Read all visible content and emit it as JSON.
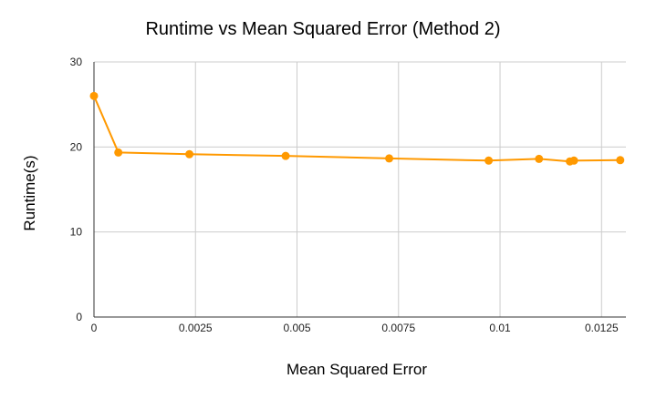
{
  "chart_data": {
    "type": "line",
    "title": "Runtime vs Mean Squared Error (Method 2)",
    "xlabel": "Mean Squared Error",
    "ylabel": "Runtime(s)",
    "xlim": [
      0,
      0.0131
    ],
    "ylim": [
      0,
      30
    ],
    "x_ticks": [
      0,
      0.0025,
      0.005,
      0.0075,
      0.01,
      0.0125
    ],
    "x_tick_labels": [
      "0",
      "0.0025",
      "0.005",
      "0.0075",
      "0.01",
      "0.0125"
    ],
    "y_ticks": [
      0,
      10,
      20,
      30
    ],
    "y_tick_labels": [
      "0",
      "10",
      "20",
      "30"
    ],
    "grid": true,
    "series": [
      {
        "color": "#ff9900",
        "x": [
          0,
          0.0006,
          0.00235,
          0.00472,
          0.00727,
          0.00972,
          0.01096,
          0.01172,
          0.01182,
          0.01296
        ],
        "y": [
          26.0,
          19.35,
          19.15,
          18.95,
          18.65,
          18.4,
          18.6,
          18.3,
          18.4,
          18.45
        ]
      }
    ]
  }
}
